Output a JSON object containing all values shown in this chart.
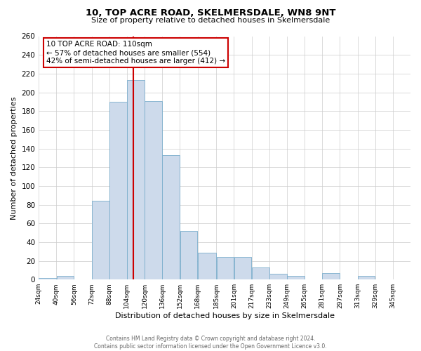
{
  "title": "10, TOP ACRE ROAD, SKELMERSDALE, WN8 9NT",
  "subtitle": "Size of property relative to detached houses in Skelmersdale",
  "xlabel": "Distribution of detached houses by size in Skelmersdale",
  "ylabel": "Number of detached properties",
  "footnote1": "Contains HM Land Registry data © Crown copyright and database right 2024.",
  "footnote2": "Contains public sector information licensed under the Open Government Licence v3.0.",
  "bin_labels": [
    "24sqm",
    "40sqm",
    "56sqm",
    "72sqm",
    "88sqm",
    "104sqm",
    "120sqm",
    "136sqm",
    "152sqm",
    "168sqm",
    "185sqm",
    "201sqm",
    "217sqm",
    "233sqm",
    "249sqm",
    "265sqm",
    "281sqm",
    "297sqm",
    "313sqm",
    "329sqm",
    "345sqm"
  ],
  "bin_edges": [
    24,
    40,
    56,
    72,
    88,
    104,
    120,
    136,
    152,
    168,
    185,
    201,
    217,
    233,
    249,
    265,
    281,
    297,
    313,
    329,
    345
  ],
  "bar_heights": [
    2,
    4,
    0,
    84,
    190,
    213,
    191,
    133,
    52,
    29,
    24,
    24,
    13,
    6,
    4,
    0,
    7,
    0,
    4,
    0,
    0
  ],
  "bar_color": "#cddaeb",
  "bar_edge_color": "#7aadcc",
  "ylim": [
    0,
    260
  ],
  "yticks": [
    0,
    20,
    40,
    60,
    80,
    100,
    120,
    140,
    160,
    180,
    200,
    220,
    240,
    260
  ],
  "vline_color": "#cc0000",
  "vline_x": 110,
  "annotation_title": "10 TOP ACRE ROAD: 110sqm",
  "annotation_line1": "← 57% of detached houses are smaller (554)",
  "annotation_line2": "42% of semi-detached houses are larger (412) →",
  "annotation_box_color": "#cc0000",
  "background_color": "#ffffff",
  "grid_color": "#cccccc"
}
